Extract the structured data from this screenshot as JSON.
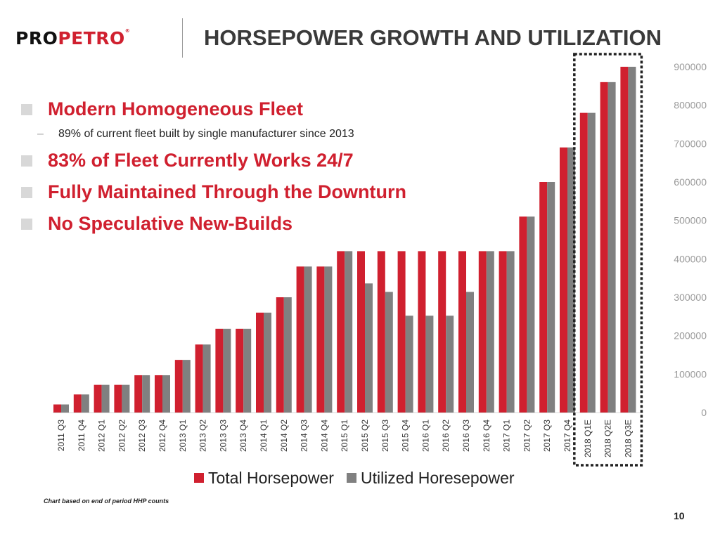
{
  "header": {
    "logo_pro": "PRO",
    "logo_petro": "PETRO",
    "logo_reg": "®",
    "title": "HORSEPOWER GROWTH AND UTILIZATION"
  },
  "bullets": [
    {
      "text": "Modern Homogeneous Fleet",
      "sub": "89% of current fleet built by single manufacturer since 2013"
    },
    {
      "text": "83% of Fleet Currently Works 24/7"
    },
    {
      "text": "Fully Maintained Through the Downturn"
    },
    {
      "text": "No Speculative New-Builds"
    }
  ],
  "footnote": "Chart based on end of period HHP counts",
  "page_number": "10",
  "chart_data": {
    "type": "bar",
    "categories": [
      "2011 Q3",
      "2011 Q4",
      "2012 Q1",
      "2012 Q2",
      "2012 Q3",
      "2012 Q4",
      "2013 Q1",
      "2013 Q2",
      "2013 Q3",
      "2013 Q4",
      "2014 Q1",
      "2014 Q2",
      "2014 Q3",
      "2014 Q4",
      "2015 Q1",
      "2015 Q2",
      "2015 Q3",
      "2015 Q4",
      "2016 Q1",
      "2016 Q2",
      "2016 Q3",
      "2016 Q4",
      "2017 Q1",
      "2017 Q2",
      "2017 Q3",
      "2017 Q4",
      "2018 Q1E",
      "2018 Q2E",
      "2018 Q3E"
    ],
    "series": [
      {
        "name": "Total Horsepower",
        "color": "#d0202f",
        "values": [
          21000,
          47000,
          72000,
          72000,
          97000,
          97000,
          137000,
          177000,
          218000,
          218000,
          260000,
          300000,
          380000,
          380000,
          420000,
          420000,
          420000,
          420000,
          420000,
          420000,
          420000,
          420000,
          420000,
          510000,
          600000,
          690000,
          780000,
          860000,
          900000
        ]
      },
      {
        "name": "Utilized Horesepower",
        "color": "#808080",
        "values": [
          21000,
          47000,
          72000,
          72000,
          97000,
          97000,
          137000,
          177000,
          218000,
          218000,
          260000,
          300000,
          380000,
          380000,
          420000,
          336000,
          314000,
          252000,
          252000,
          252000,
          314000,
          420000,
          420000,
          510000,
          600000,
          690000,
          780000,
          860000,
          900000
        ]
      }
    ],
    "yticks": [
      "0",
      "100000",
      "200000",
      "300000",
      "400000",
      "500000",
      "600000",
      "700000",
      "800000",
      "900000"
    ],
    "ylim": [
      0,
      900000
    ],
    "y_axis_side": "right",
    "legend": "bottom",
    "grid": false,
    "highlight": "dashed box around 2018 Q1E–2018 Q3E"
  }
}
